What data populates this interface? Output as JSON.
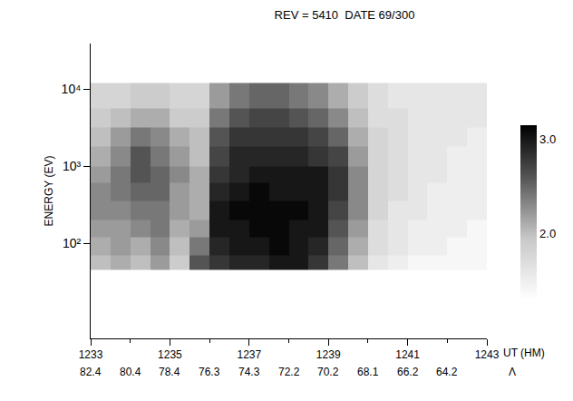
{
  "chart_data": {
    "type": "heatmap",
    "title": "REV = 5410  DATE 69/300",
    "x_label": "UT (HM)",
    "y_label": "ENERGY (EV)",
    "log": "y",
    "grid": false,
    "x": [
      1233,
      1233.5,
      1234,
      1234.5,
      1235,
      1235.5,
      1236,
      1236.5,
      1237,
      1237.5,
      1238,
      1238.5,
      1239,
      1239.5,
      1240,
      1240.5,
      1241,
      1241.5,
      1242,
      1242.5,
      1243
    ],
    "y": [
      45,
      70,
      120,
      200,
      350,
      600,
      1000,
      1800,
      3200,
      5600,
      12000
    ],
    "z": [
      [
        2.0,
        2.1,
        2.0,
        2.2,
        1.9,
        2.6,
        2.8,
        2.9,
        2.9,
        3.0,
        3.0,
        2.8,
        2.4,
        2.0,
        1.6,
        1.5,
        1.4,
        1.4,
        1.4,
        1.4
      ],
      [
        2.1,
        2.2,
        2.1,
        2.3,
        2.0,
        2.4,
        2.9,
        3.0,
        3.0,
        3.1,
        3.0,
        2.9,
        2.5,
        2.1,
        1.7,
        1.6,
        1.5,
        1.5,
        1.4,
        1.4
      ],
      [
        2.2,
        2.2,
        2.3,
        2.4,
        2.1,
        2.2,
        3.0,
        3.0,
        3.1,
        3.1,
        3.0,
        3.0,
        2.6,
        2.2,
        1.7,
        1.6,
        1.5,
        1.5,
        1.5,
        1.4
      ],
      [
        2.3,
        2.3,
        2.4,
        2.4,
        2.2,
        2.1,
        3.0,
        3.1,
        3.1,
        3.1,
        3.1,
        3.0,
        2.7,
        2.3,
        1.8,
        1.6,
        1.6,
        1.5,
        1.5,
        1.5
      ],
      [
        2.3,
        2.4,
        2.5,
        2.5,
        2.2,
        2.1,
        2.9,
        3.0,
        3.1,
        3.0,
        3.0,
        3.0,
        2.8,
        2.3,
        1.8,
        1.7,
        1.6,
        1.5,
        1.5,
        1.5
      ],
      [
        2.2,
        2.4,
        2.6,
        2.5,
        2.3,
        2.1,
        2.8,
        2.9,
        3.0,
        3.0,
        3.0,
        3.0,
        2.8,
        2.3,
        1.8,
        1.7,
        1.6,
        1.6,
        1.5,
        1.5
      ],
      [
        2.1,
        2.3,
        2.6,
        2.4,
        2.2,
        2.0,
        2.7,
        2.9,
        2.9,
        2.9,
        2.9,
        2.8,
        2.7,
        2.2,
        1.8,
        1.7,
        1.6,
        1.6,
        1.5,
        1.5
      ],
      [
        2.0,
        2.2,
        2.4,
        2.3,
        2.1,
        2.0,
        2.6,
        2.8,
        2.8,
        2.8,
        2.8,
        2.7,
        2.5,
        2.1,
        1.8,
        1.7,
        1.6,
        1.6,
        1.6,
        1.5
      ],
      [
        1.9,
        2.0,
        2.1,
        2.1,
        1.9,
        1.9,
        2.4,
        2.6,
        2.7,
        2.7,
        2.6,
        2.5,
        2.3,
        2.0,
        1.7,
        1.7,
        1.6,
        1.6,
        1.6,
        1.6
      ],
      [
        1.8,
        1.8,
        1.9,
        1.9,
        1.8,
        1.8,
        2.2,
        2.4,
        2.5,
        2.5,
        2.4,
        2.3,
        2.1,
        1.9,
        1.7,
        1.6,
        1.6,
        1.6,
        1.6,
        1.6
      ]
    ],
    "xlim": [
      1233,
      1243
    ],
    "xticks": [
      1233,
      1235,
      1237,
      1239,
      1241,
      1243
    ],
    "ylim": [
      5.8,
      39000
    ],
    "yticks": [
      {
        "value": 100,
        "label": "10²"
      },
      {
        "value": 1000,
        "label": "10³"
      },
      {
        "value": 10000,
        "label": "10⁴"
      }
    ],
    "zlim": [
      1.3,
      3.15
    ],
    "zticks": [
      {
        "value": 2,
        "label": "2.0"
      },
      {
        "value": 3,
        "label": "3.0"
      }
    ],
    "lat_label": "Λ",
    "lat_ticks": [
      {
        "value": 1233,
        "label": "82.4"
      },
      {
        "value": 1234,
        "label": "80.4"
      },
      {
        "value": 1235,
        "label": "78.4"
      },
      {
        "value": 1236,
        "label": "76.3"
      },
      {
        "value": 1237,
        "label": "74.3"
      },
      {
        "value": 1238,
        "label": "72.2"
      },
      {
        "value": 1239,
        "label": "70.2"
      },
      {
        "value": 1240,
        "label": "68.1"
      },
      {
        "value": 1241,
        "label": "66.2"
      },
      {
        "value": 1242,
        "label": "64.2"
      }
    ]
  }
}
